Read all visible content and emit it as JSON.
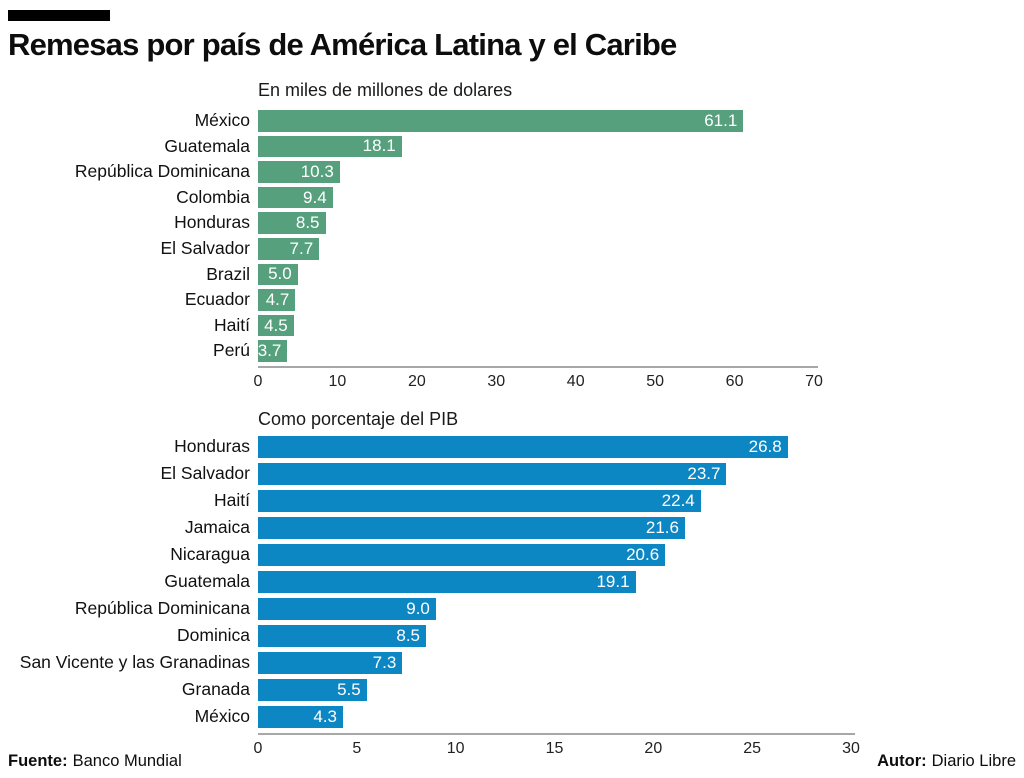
{
  "title": "Remesas por país de América Latina y el Caribe",
  "footer": {
    "source_label": "Fuente:",
    "source": "Banco Mundial",
    "author_label": "Autor:",
    "author": "Diario Libre"
  },
  "colors": {
    "green_bar": "#56a07d",
    "blue_bar": "#0d86c4",
    "axis_line": "#a6a8a7"
  },
  "chart_data": [
    {
      "type": "bar",
      "orientation": "horizontal",
      "title": "En miles de millones de dolares",
      "categories": [
        "México",
        "Guatemala",
        "República Dominicana",
        "Colombia",
        "Honduras",
        "El Salvador",
        "Brazil",
        "Ecuador",
        "Haití",
        "Perú"
      ],
      "values": [
        61.1,
        18.1,
        10.3,
        9.4,
        8.5,
        7.7,
        5.0,
        4.7,
        4.5,
        3.7
      ],
      "value_labels": [
        "61.1",
        "18.1",
        "10.3",
        "9.4",
        "8.5",
        "7.7",
        "5.0",
        "4.7",
        "4.5",
        "3.7"
      ],
      "xlim": [
        0,
        70
      ],
      "max": 70,
      "ticks": [
        "0",
        "10",
        "20",
        "30",
        "40",
        "50",
        "60",
        "70"
      ],
      "bar_color": "#56a07d",
      "grid": false,
      "value_label_position": "inside-end",
      "legend": "none"
    },
    {
      "type": "bar",
      "orientation": "horizontal",
      "title": "Como porcentaje del PIB",
      "categories": [
        "Honduras",
        "El Salvador",
        "Haití",
        "Jamaica",
        "Nicaragua",
        "Guatemala",
        "República Dominicana",
        "Dominica",
        "San Vicente y las Granadinas",
        "Granada",
        "México"
      ],
      "values": [
        26.8,
        23.7,
        22.4,
        21.6,
        20.6,
        19.1,
        9.0,
        8.5,
        7.3,
        5.5,
        4.3
      ],
      "value_labels": [
        "26.8",
        "23.7",
        "22.4",
        "21.6",
        "20.6",
        "19.1",
        "9.0",
        "8.5",
        "7.3",
        "5.5",
        "4.3"
      ],
      "xlim": [
        0,
        30
      ],
      "max": 30,
      "ticks": [
        "0",
        "5",
        "10",
        "15",
        "20",
        "25",
        "30"
      ],
      "bar_color": "#0d86c4",
      "grid": false,
      "value_label_position": "inside-end",
      "legend": "none"
    }
  ]
}
